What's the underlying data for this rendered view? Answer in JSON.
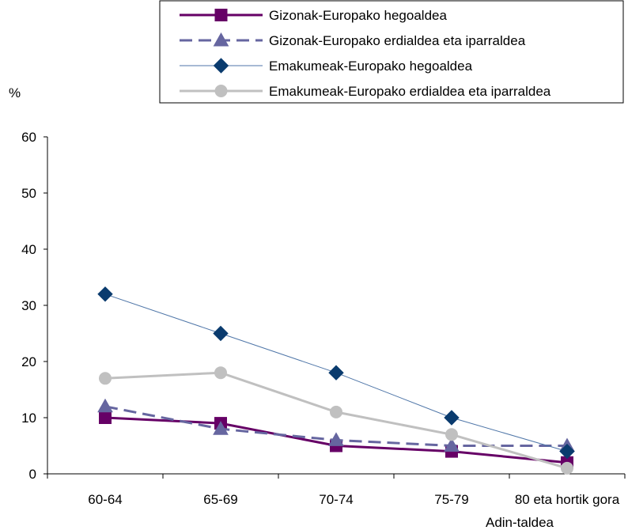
{
  "chart_data": {
    "type": "line",
    "title": "",
    "ylabel": "%",
    "xlabel": "Adin-taldea",
    "categories": [
      "60-64",
      "65-69",
      "70-74",
      "75-79",
      "80 eta hortik gora"
    ],
    "ylim": [
      0,
      60
    ],
    "yticks": [
      0,
      10,
      20,
      30,
      40,
      50,
      60
    ],
    "grid": false,
    "legend_position": "top-right",
    "series": [
      {
        "name": "Gizonak-Europako hegoaldea",
        "values": [
          10,
          9,
          5,
          4,
          2
        ],
        "color": "#660066",
        "marker": "square",
        "dash": "solid",
        "weight": "thick"
      },
      {
        "name": "Gizonak-Europako erdialdea eta iparraldea",
        "values": [
          12,
          8,
          6,
          5,
          5
        ],
        "color": "#6666A0",
        "marker": "triangle",
        "dash": "dashed",
        "weight": "thick"
      },
      {
        "name": "Emakumeak-Europako hegoaldea",
        "values": [
          32,
          25,
          18,
          10,
          4
        ],
        "color": "#4F76A8",
        "marker_color": "#0A3B6E",
        "marker": "diamond",
        "dash": "solid",
        "weight": "thin"
      },
      {
        "name": "Emakumeak-Europako erdialdea eta iparraldea",
        "values": [
          17,
          18,
          11,
          7,
          1
        ],
        "color": "#C0C0C0",
        "marker": "circle",
        "dash": "solid",
        "weight": "thick"
      }
    ]
  }
}
